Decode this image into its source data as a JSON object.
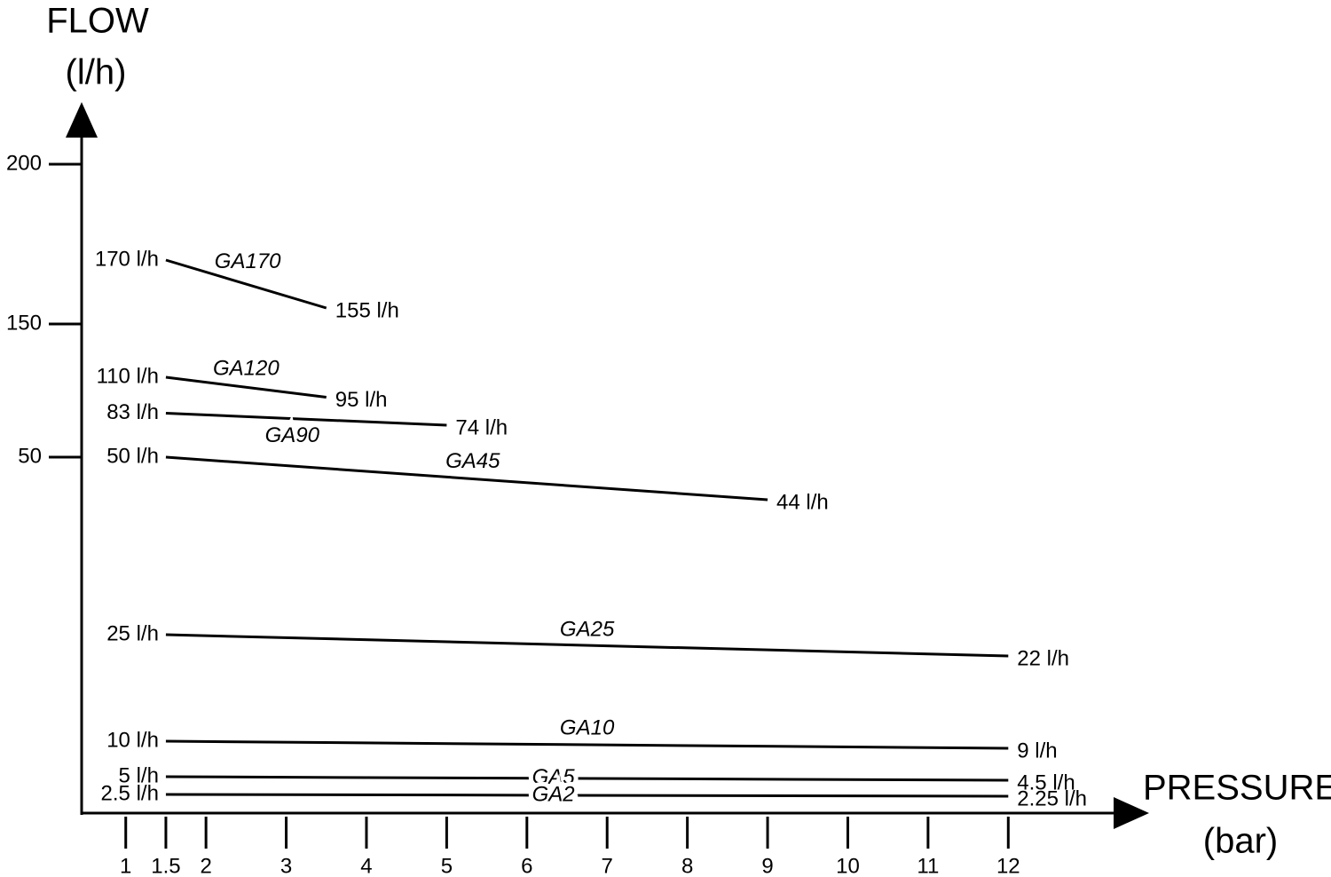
{
  "chart_data": {
    "type": "line",
    "y_label": [
      "FLOW",
      "(l/h)"
    ],
    "x_label": [
      "PRESSURE",
      "(bar)"
    ],
    "xlim": [
      0.45,
      13.7
    ],
    "xticks": [
      1,
      1.5,
      2,
      3,
      4,
      5,
      6,
      7,
      8,
      9,
      10,
      11,
      12
    ],
    "ylim": [
      0,
      200
    ],
    "yticks": [
      50,
      150,
      200
    ],
    "color": "#000000",
    "series": [
      {
        "name": "GA170",
        "x": [
          1.5,
          3.5
        ],
        "values": [
          170,
          155
        ],
        "value_labels": [
          "170 l/h",
          "155 l/h"
        ]
      },
      {
        "name": "GA120",
        "x": [
          1.5,
          3.5
        ],
        "values": [
          110,
          95
        ],
        "value_labels": [
          "110 l/h",
          "95 l/h"
        ]
      },
      {
        "name": "GA90",
        "x": [
          1.5,
          5
        ],
        "values": [
          83,
          74
        ],
        "value_labels": [
          "83 l/h",
          "74 l/h"
        ]
      },
      {
        "name": "GA45",
        "x": [
          1.5,
          9
        ],
        "values": [
          50,
          44
        ],
        "value_labels": [
          "50 l/h",
          "44 l/h"
        ]
      },
      {
        "name": "GA25",
        "x": [
          1.5,
          12
        ],
        "values": [
          25,
          22
        ],
        "value_labels": [
          "25 l/h",
          "22 l/h"
        ]
      },
      {
        "name": "GA10",
        "x": [
          1.5,
          12
        ],
        "values": [
          10,
          9
        ],
        "value_labels": [
          "10 l/h",
          "9 l/h"
        ]
      },
      {
        "name": "GA5",
        "x": [
          1.5,
          12
        ],
        "values": [
          5,
          4.5
        ],
        "value_labels": [
          "5 l/h",
          "4.5 l/h"
        ]
      },
      {
        "name": "GA2",
        "x": [
          1.5,
          12
        ],
        "values": [
          2.5,
          2.25
        ],
        "value_labels": [
          "2.5 l/h",
          "2.25 l/h"
        ]
      }
    ]
  }
}
